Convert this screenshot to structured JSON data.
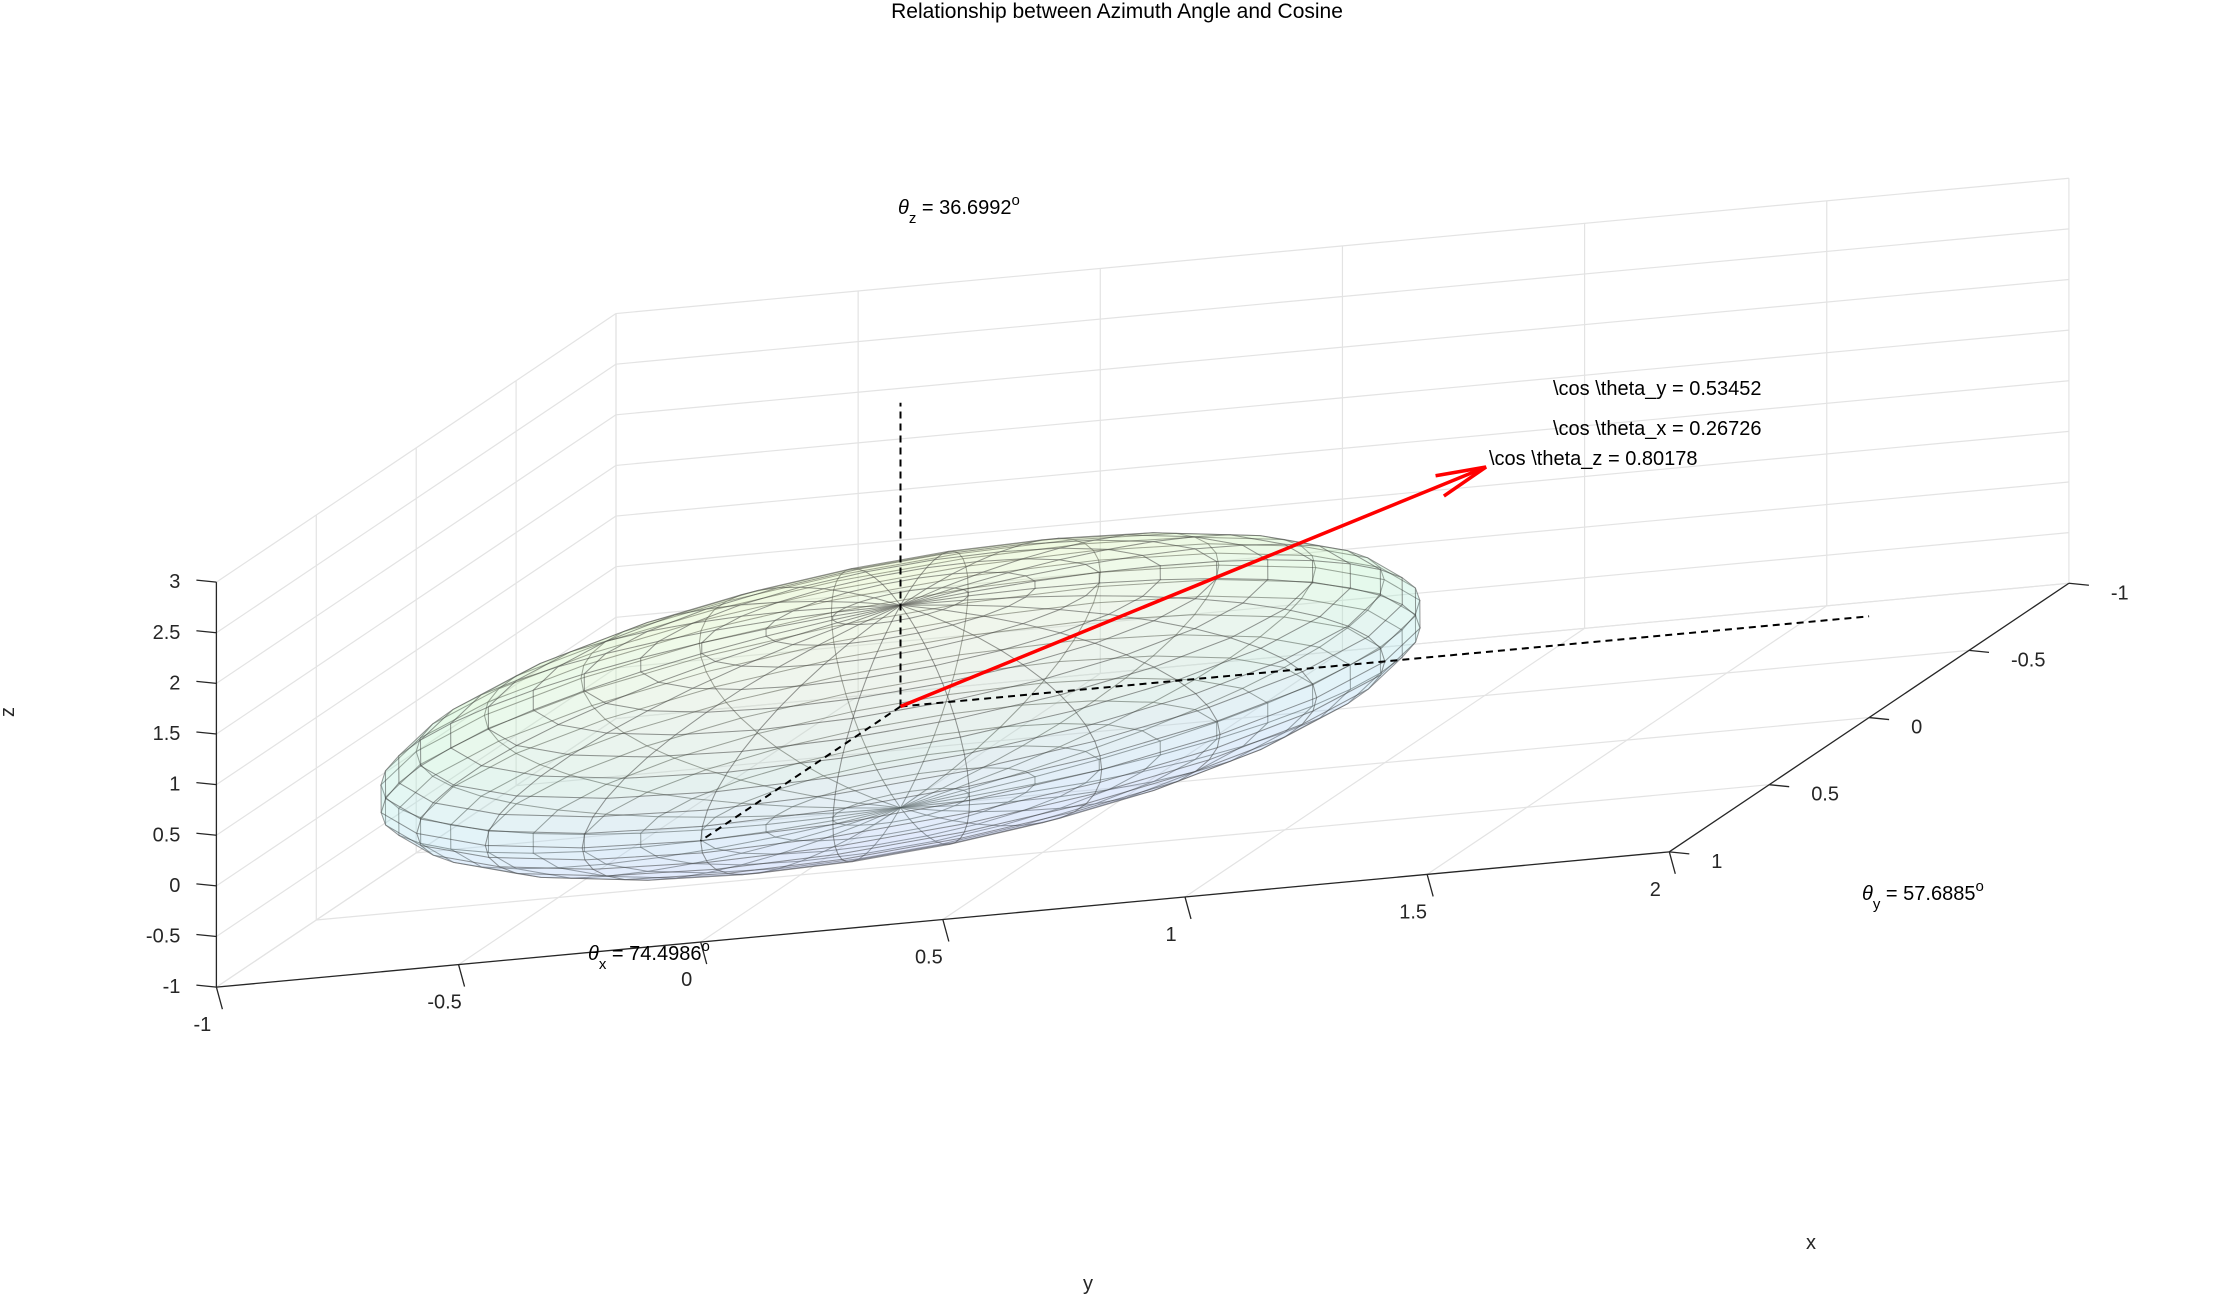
{
  "chart_data": {
    "type": "3d-surface",
    "title": "Relationship between Azimuth Angle and Cosine",
    "xlabel": "x",
    "ylabel": "y",
    "zlabel": "z",
    "xlim": [
      -1,
      1
    ],
    "ylim": [
      -1,
      2
    ],
    "zlim": [
      -1,
      3
    ],
    "grid": true,
    "x_ticks": [
      "-1",
      "-0.5",
      "0",
      "0.5",
      "1"
    ],
    "y_ticks": [
      "-1",
      "-0.5",
      "0",
      "0.5",
      "1",
      "1.5",
      "2"
    ],
    "z_ticks": [
      "-1",
      "-0.5",
      "0",
      "0.5",
      "1",
      "1.5",
      "2",
      "2.5",
      "3"
    ],
    "surface": {
      "kind": "sphere",
      "center": [
        0,
        0,
        0
      ],
      "radius": 1,
      "colormap": "parula-pastel",
      "face_alpha": 0.2
    },
    "vector": {
      "start": [
        0,
        0,
        0
      ],
      "end": [
        1,
        2,
        3
      ],
      "color": "#ff0000"
    },
    "angle_labels": [
      {
        "symbol": "θ",
        "sub": "x",
        "text": " = 74.4986",
        "sup": "o"
      },
      {
        "symbol": "θ",
        "sub": "y",
        "text": " = 57.6885",
        "sup": "o"
      },
      {
        "symbol": "θ",
        "sub": "z",
        "text": " = 36.6992",
        "sup": "o"
      }
    ],
    "cosine_labels": [
      "\\cos \\theta_y = 0.53452",
      "\\cos \\theta_x = 0.26726",
      "\\cos \\theta_z = 0.80178"
    ]
  }
}
